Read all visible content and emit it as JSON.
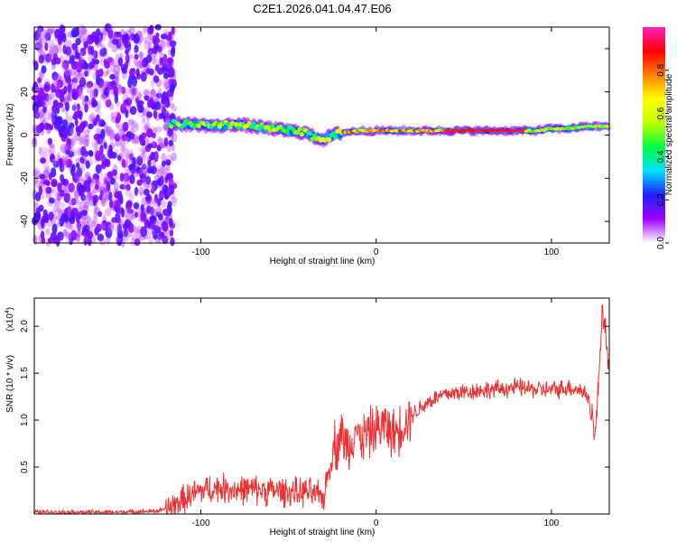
{
  "chart_data": [
    {
      "type": "heatmap",
      "title": "C2E1.2026.041.04.47.E06",
      "xlabel": "Height of straight line (km)",
      "ylabel": "Frequency (Hz)",
      "xlim": [
        -195,
        133
      ],
      "ylim": [
        -50,
        50
      ],
      "xticks": [
        -100,
        0,
        100
      ],
      "yticks": [
        -40,
        -20,
        0,
        20,
        40
      ],
      "noise_region_x": [
        -195,
        -115
      ],
      "ridge": {
        "x": [
          -118,
          -105,
          -90,
          -80,
          -70,
          -60,
          -50,
          -40,
          -35,
          -30,
          -25,
          -20,
          -10,
          0,
          10,
          20,
          40,
          60,
          80,
          90,
          100,
          110,
          120,
          133
        ],
        "y": [
          5,
          5,
          4,
          5,
          4,
          3,
          2,
          1,
          -1,
          -2,
          0,
          1,
          2,
          2,
          2,
          2,
          2,
          2,
          2,
          2,
          3,
          3,
          4,
          4
        ]
      },
      "colorbar": {
        "label": "Normalized spectral amplitude",
        "ticks": [
          0.0,
          0.2,
          0.4,
          0.6,
          0.8
        ],
        "tick_labels": [
          "0.0",
          "0.2",
          "0.4",
          "0.6",
          "0.8"
        ],
        "range": [
          0,
          1
        ],
        "colors": [
          "#ffffff",
          "#a000ff",
          "#2020ff",
          "#00e0ff",
          "#00ff40",
          "#c0ff00",
          "#ffff00",
          "#ff8000",
          "#ff0000",
          "#ff20c0"
        ]
      }
    },
    {
      "type": "line",
      "title": "",
      "xlabel": "Height of straight line (km)",
      "ylabel": "SNR (10 * v/v)",
      "scale_label": "(x10",
      "scale_exp": "4",
      "scale_close": ")",
      "xlim": [
        -195,
        133
      ],
      "ylim": [
        0,
        2.3
      ],
      "xticks": [
        -100,
        0,
        100
      ],
      "yticks": [
        0.5,
        1.0,
        1.5,
        2.0
      ],
      "ytick_labels": [
        "0.5",
        "1.0",
        "1.5",
        "2.0"
      ],
      "series": [
        {
          "name": "SNR",
          "color": "#ee3030",
          "x": [
            -195,
            -150,
            -125,
            -118,
            -110,
            -100,
            -90,
            -80,
            -70,
            -60,
            -50,
            -45,
            -40,
            -35,
            -30,
            -26,
            -24,
            -22,
            -20,
            -18,
            -15,
            -12,
            -10,
            -5,
            0,
            5,
            10,
            15,
            20,
            30,
            40,
            50,
            60,
            70,
            80,
            90,
            100,
            110,
            115,
            120,
            123,
            125,
            127,
            129,
            131,
            133
          ],
          "y": [
            0.02,
            0.02,
            0.03,
            0.06,
            0.15,
            0.25,
            0.28,
            0.26,
            0.26,
            0.25,
            0.24,
            0.22,
            0.24,
            0.2,
            0.18,
            0.55,
            0.75,
            0.7,
            0.9,
            0.75,
            0.72,
            0.95,
            0.8,
            0.85,
            0.9,
            0.95,
            0.85,
            0.95,
            1.05,
            1.2,
            1.28,
            1.3,
            1.32,
            1.33,
            1.35,
            1.33,
            1.32,
            1.35,
            1.33,
            1.28,
            1.1,
            0.8,
            1.45,
            2.2,
            1.95,
            1.4
          ]
        }
      ]
    }
  ]
}
